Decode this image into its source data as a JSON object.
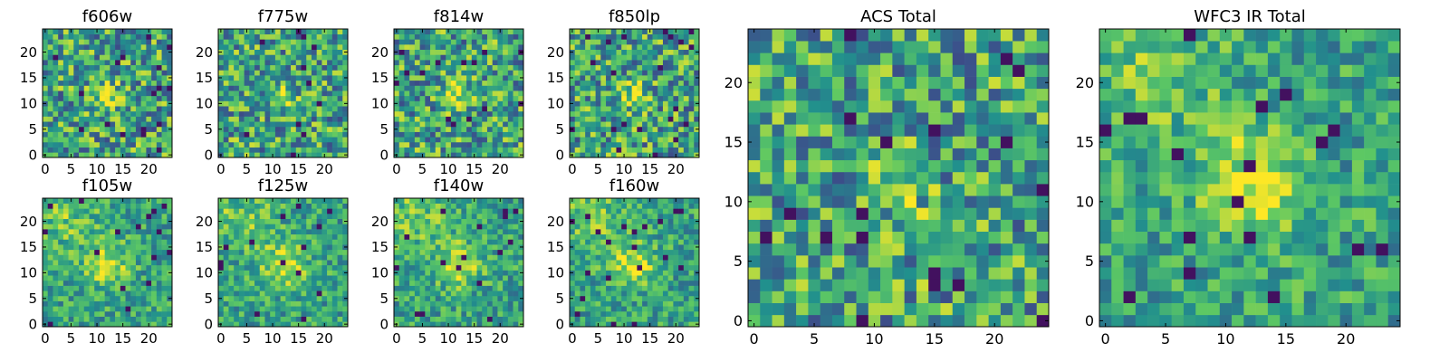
{
  "chart_data": [
    {
      "type": "heatmap",
      "title": "f606w",
      "xticks": [
        0,
        5,
        10,
        15,
        20
      ],
      "yticks": [
        0,
        5,
        10,
        15,
        20
      ],
      "grid_size": 25,
      "xlim": [
        0,
        25
      ],
      "ylim": [
        0,
        25
      ]
    },
    {
      "type": "heatmap",
      "title": "f775w",
      "xticks": [
        0,
        5,
        10,
        15,
        20
      ],
      "yticks": [
        0,
        5,
        10,
        15,
        20
      ],
      "grid_size": 25,
      "xlim": [
        0,
        25
      ],
      "ylim": [
        0,
        25
      ]
    },
    {
      "type": "heatmap",
      "title": "f814w",
      "xticks": [
        0,
        5,
        10,
        15,
        20
      ],
      "yticks": [
        0,
        5,
        10,
        15,
        20
      ],
      "grid_size": 25,
      "xlim": [
        0,
        25
      ],
      "ylim": [
        0,
        25
      ]
    },
    {
      "type": "heatmap",
      "title": "f850lp",
      "xticks": [
        0,
        5,
        10,
        15,
        20
      ],
      "yticks": [
        0,
        5,
        10,
        15,
        20
      ],
      "grid_size": 25,
      "xlim": [
        0,
        25
      ],
      "ylim": [
        0,
        25
      ]
    },
    {
      "type": "heatmap",
      "title": "f105w",
      "xticks": [
        0,
        5,
        10,
        15,
        20
      ],
      "yticks": [
        0,
        5,
        10,
        15,
        20
      ],
      "grid_size": 25,
      "xlim": [
        0,
        25
      ],
      "ylim": [
        0,
        25
      ]
    },
    {
      "type": "heatmap",
      "title": "f125w",
      "xticks": [
        0,
        5,
        10,
        15,
        20
      ],
      "yticks": [
        0,
        5,
        10,
        15,
        20
      ],
      "grid_size": 25,
      "xlim": [
        0,
        25
      ],
      "ylim": [
        0,
        25
      ]
    },
    {
      "type": "heatmap",
      "title": "f140w",
      "xticks": [
        0,
        5,
        10,
        15,
        20
      ],
      "yticks": [
        0,
        5,
        10,
        15,
        20
      ],
      "grid_size": 25,
      "xlim": [
        0,
        25
      ],
      "ylim": [
        0,
        25
      ]
    },
    {
      "type": "heatmap",
      "title": "f160w",
      "xticks": [
        0,
        5,
        10,
        15,
        20
      ],
      "yticks": [
        0,
        5,
        10,
        15,
        20
      ],
      "grid_size": 25,
      "xlim": [
        0,
        25
      ],
      "ylim": [
        0,
        25
      ]
    },
    {
      "type": "heatmap",
      "title": "ACS Total",
      "xticks": [
        0,
        5,
        10,
        15,
        20
      ],
      "yticks": [
        0,
        5,
        10,
        15,
        20
      ],
      "grid_size": 25,
      "xlim": [
        0,
        25
      ],
      "ylim": [
        0,
        25
      ]
    },
    {
      "type": "heatmap",
      "title": "WFC3 IR Total",
      "xticks": [
        0,
        5,
        10,
        15,
        20
      ],
      "yticks": [
        0,
        5,
        10,
        15,
        20
      ],
      "grid_size": 25,
      "xlim": [
        0,
        25
      ],
      "ylim": [
        0,
        25
      ]
    }
  ],
  "colors": {
    "colormap": [
      "#440154",
      "#3b528b",
      "#21908d",
      "#5dc863",
      "#fde725"
    ]
  }
}
